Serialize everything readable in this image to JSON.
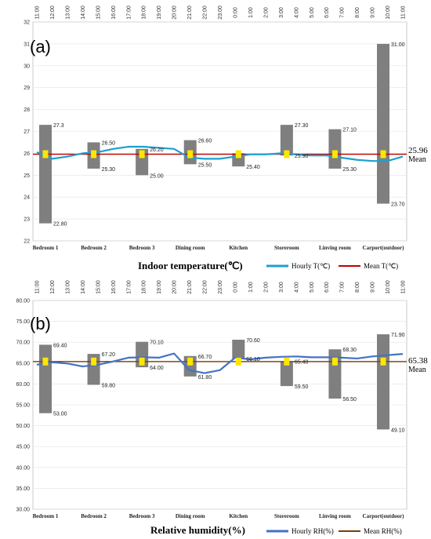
{
  "chart_data": [
    {
      "type": "line",
      "panel": "(a)",
      "xlabel": "Indoor temperature(℃)",
      "ylim": [
        22,
        32
      ],
      "y_ticks": [
        "22",
        "23",
        "24",
        "25",
        "26",
        "27",
        "28",
        "29",
        "30",
        "31",
        "32"
      ],
      "time_ticks": [
        "11:00",
        "12:00",
        "13:00",
        "14:00",
        "15:00",
        "16:00",
        "17:00",
        "18:00",
        "19:00",
        "20:00",
        "21:00",
        "22:00",
        "23:00",
        "0:00",
        "1:00",
        "2:00",
        "3:00",
        "4:00",
        "5:00",
        "6:00",
        "7:00",
        "8:00",
        "9:00",
        "10:00",
        "11:00"
      ],
      "categories": [
        "Bedroom 1",
        "Bedroom 2",
        "Bedroom 3",
        "Dining room",
        "Kitchen",
        "Storeroom",
        "Linving room",
        "Carport(outdoor)"
      ],
      "ranges": [
        {
          "max": 27.3,
          "min": 22.8,
          "max_label": "27.3",
          "min_label": "22.80"
        },
        {
          "max": 26.5,
          "min": 25.3,
          "max_label": "26.50",
          "min_label": "25.30"
        },
        {
          "max": 26.2,
          "min": 25.0,
          "max_label": "26.20",
          "min_label": "25.00"
        },
        {
          "max": 26.6,
          "min": 25.5,
          "max_label": "26.60",
          "min_label": "25.50"
        },
        {
          "max": 26.0,
          "min": 25.4,
          "max_label": "",
          "min_label": "25.40"
        },
        {
          "max": 27.3,
          "min": 25.9,
          "max_label": "27.30",
          "min_label": "25.90"
        },
        {
          "max": 27.1,
          "min": 25.3,
          "max_label": "27.10",
          "min_label": "25.30"
        },
        {
          "max": 31.0,
          "min": 23.7,
          "max_label": "31.00",
          "min_label": "23.70"
        }
      ],
      "hourly_series": {
        "name": "Hourly T(℃)",
        "x": [
          "11:00",
          "12:00",
          "13:00",
          "14:00",
          "15:00",
          "16:00",
          "17:00",
          "18:00",
          "19:00",
          "20:00",
          "21:00",
          "22:00",
          "23:00",
          "0:00",
          "1:00",
          "2:00",
          "3:00",
          "4:00",
          "5:00",
          "6:00",
          "7:00",
          "8:00",
          "9:00",
          "10:00",
          "11:00"
        ],
        "values": [
          26.05,
          25.75,
          25.85,
          26.0,
          26.05,
          26.2,
          26.3,
          26.3,
          26.25,
          26.2,
          25.8,
          25.75,
          25.75,
          25.85,
          25.95,
          25.95,
          26.0,
          25.95,
          25.9,
          25.9,
          25.8,
          25.7,
          25.65,
          25.65,
          25.85
        ]
      },
      "mean_series": {
        "name": "Mean T(℃)",
        "value": 25.96,
        "value_label": "25.96",
        "tag": "Mean"
      },
      "colors": {
        "hourly": "#1e9fd0",
        "mean": "#c00000",
        "range_bar": "#7f7f7f",
        "marker": "#ffe600"
      }
    },
    {
      "type": "line",
      "panel": "(b)",
      "xlabel": "Relative humidity(%)",
      "ylim": [
        30,
        80
      ],
      "y_ticks": [
        "30.00",
        "35.00",
        "40.00",
        "45.00",
        "50.00",
        "55.00",
        "60.00",
        "65.00",
        "70.00",
        "75.00",
        "80.00"
      ],
      "time_ticks": [
        "11:00",
        "12:00",
        "13:00",
        "14:00",
        "15:00",
        "16:00",
        "17:00",
        "18:00",
        "19:00",
        "20:00",
        "21:00",
        "22:00",
        "23:00",
        "0:00",
        "1:00",
        "2:00",
        "3:00",
        "4:00",
        "5:00",
        "6:00",
        "7:00",
        "8:00",
        "9:00",
        "10:00",
        "11:00"
      ],
      "categories": [
        "Bedroom 1",
        "Bedroom 2",
        "Bedroom 3",
        "Dining room",
        "Kitchen",
        "Storeroom",
        "Linving room",
        "Carport(outdoor)"
      ],
      "ranges": [
        {
          "max": 69.4,
          "min": 53.0,
          "max_label": "69.40",
          "min_label": "53.00"
        },
        {
          "max": 67.2,
          "min": 59.8,
          "max_label": "67.20",
          "min_label": "59.80"
        },
        {
          "max": 70.1,
          "min": 64.0,
          "max_label": "70.10",
          "min_label": "64.00"
        },
        {
          "max": 66.7,
          "min": 61.8,
          "max_label": "66.70",
          "min_label": "61.80"
        },
        {
          "max": 70.6,
          "min": 66.1,
          "max_label": "70.60",
          "min_label": "66.10"
        },
        {
          "max": 65.4,
          "min": 59.5,
          "max_label": "65.40",
          "min_label": "59.50"
        },
        {
          "max": 68.3,
          "min": 56.5,
          "max_label": "68.30",
          "min_label": "56.50"
        },
        {
          "max": 71.9,
          "min": 49.1,
          "max_label": "71.90",
          "min_label": "49.10"
        }
      ],
      "hourly_series": {
        "name": "Hourly RH(%)",
        "x": [
          "11:00",
          "12:00",
          "13:00",
          "14:00",
          "15:00",
          "16:00",
          "17:00",
          "18:00",
          "19:00",
          "20:00",
          "21:00",
          "22:00",
          "23:00",
          "0:00",
          "1:00",
          "2:00",
          "3:00",
          "4:00",
          "5:00",
          "6:00",
          "7:00",
          "8:00",
          "9:00",
          "10:00",
          "11:00"
        ],
        "values": [
          64.6,
          65.2,
          64.9,
          64.2,
          64.6,
          65.4,
          66.3,
          66.4,
          66.3,
          67.3,
          63.3,
          62.6,
          63.3,
          66.3,
          65.9,
          66.3,
          66.5,
          66.6,
          66.4,
          66.4,
          66.3,
          66.1,
          66.6,
          66.9,
          67.2
        ]
      },
      "mean_series": {
        "name": "Mean RH(%)",
        "value": 65.38,
        "value_label": "65.38",
        "tag": "Mean"
      },
      "colors": {
        "hourly": "#4472c4",
        "mean": "#7b3f00",
        "range_bar": "#7f7f7f",
        "marker": "#ffe600"
      }
    }
  ]
}
